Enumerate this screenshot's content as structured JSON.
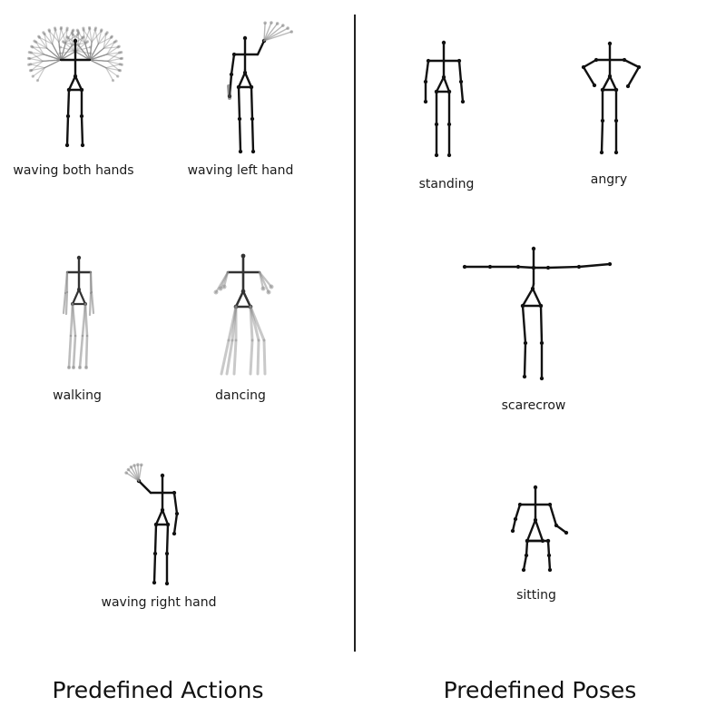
{
  "sections": {
    "actions": {
      "title": "Predefined Actions",
      "items": [
        {
          "id": "waving-both-hands",
          "label": "waving both hands"
        },
        {
          "id": "waving-left-hand",
          "label": "waving left hand"
        },
        {
          "id": "walking",
          "label": "walking"
        },
        {
          "id": "dancing",
          "label": "dancing"
        },
        {
          "id": "waving-right-hand",
          "label": "waving right hand"
        }
      ]
    },
    "poses": {
      "title": "Predefined Poses",
      "items": [
        {
          "id": "standing",
          "label": "standing"
        },
        {
          "id": "angry",
          "label": "angry"
        },
        {
          "id": "scarecrow",
          "label": "scarecrow"
        },
        {
          "id": "sitting",
          "label": "sitting"
        }
      ]
    }
  },
  "colors": {
    "stroke": "#111111",
    "ghost": "#888888",
    "background": "#ffffff"
  }
}
